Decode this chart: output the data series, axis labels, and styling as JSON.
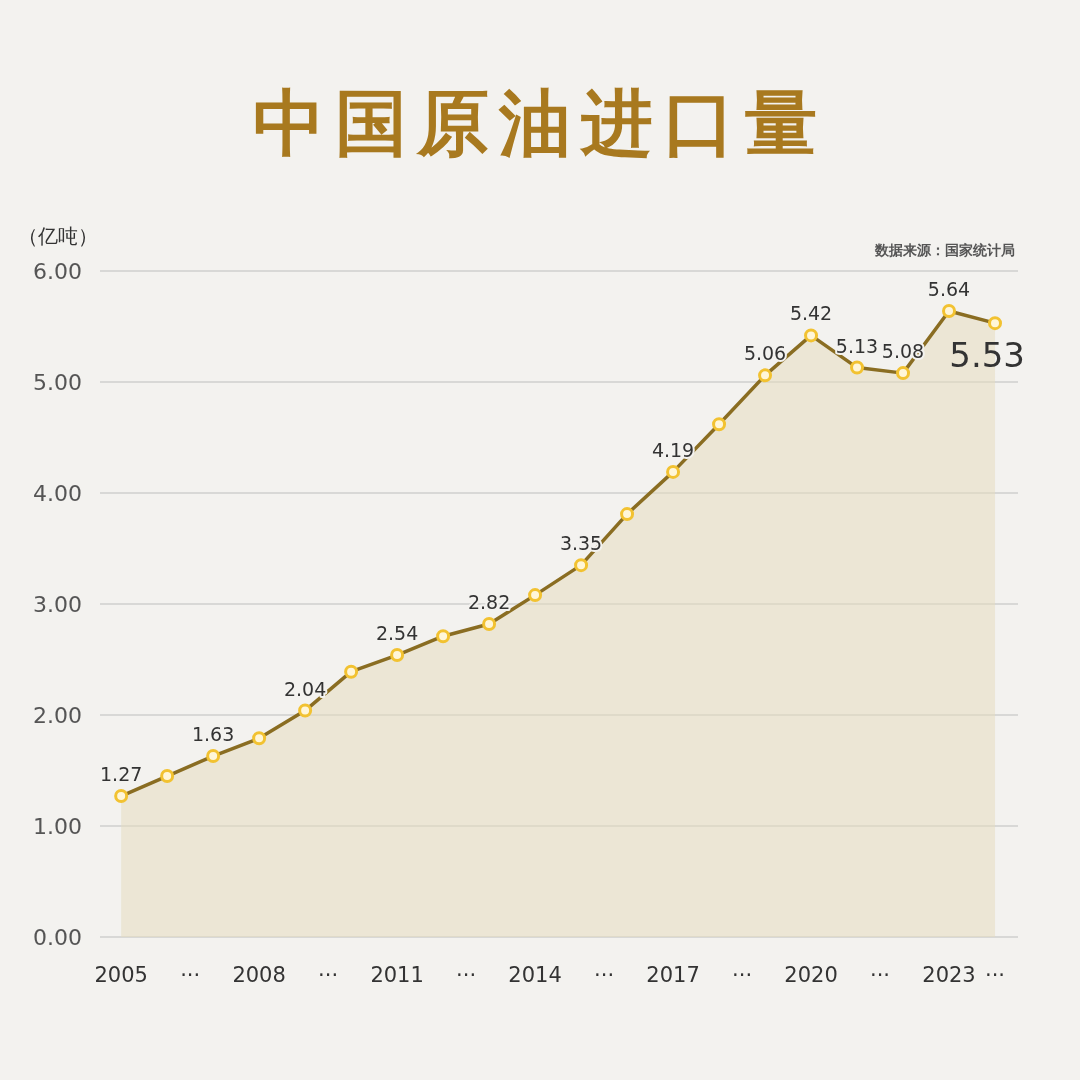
{
  "chart_data": {
    "type": "area",
    "title": "中国原油进口量",
    "ylabel": "（亿吨）",
    "annotations": [
      "数据来源：国家统计局"
    ],
    "x": [
      2005,
      2006,
      2007,
      2008,
      2009,
      2010,
      2011,
      2012,
      2013,
      2014,
      2015,
      2016,
      2017,
      2018,
      2019,
      2020,
      2021,
      2022,
      2023,
      2024
    ],
    "series": [
      {
        "color": "#8a6d22",
        "values": [
          1.27,
          1.45,
          1.63,
          1.79,
          2.04,
          2.39,
          2.54,
          2.71,
          2.82,
          3.08,
          3.35,
          3.81,
          4.19,
          4.62,
          5.06,
          5.42,
          5.13,
          5.08,
          5.64,
          5.53
        ],
        "value_labels": [
          "1.27",
          null,
          "1.63",
          null,
          "2.04",
          null,
          "2.54",
          null,
          "2.82",
          null,
          "3.35",
          null,
          "4.19",
          null,
          "5.06",
          "5.42",
          "5.13",
          "5.08",
          "5.64",
          "5.53"
        ]
      }
    ],
    "xlim": [
      2004.54,
      2024.5
    ],
    "xticks": [
      2005,
      {
        "value": 2006.5,
        "label": "···"
      },
      2008,
      {
        "value": 2009.5,
        "label": "···"
      },
      2011,
      {
        "value": 2012.5,
        "label": "···"
      },
      2014,
      {
        "value": 2015.5,
        "label": "···"
      },
      2017,
      {
        "value": 2018.5,
        "label": "···"
      },
      2020,
      {
        "value": 2021.5,
        "label": "···"
      },
      2023,
      {
        "value": 2024,
        "label": "···"
      }
    ],
    "ylim": [
      0,
      6
    ],
    "yticks": [
      {
        "value": 0,
        "label": "0.00"
      },
      {
        "value": 1,
        "label": "1.00"
      },
      {
        "value": 2,
        "label": "2.00"
      },
      {
        "value": 3,
        "label": "3.00"
      },
      {
        "value": 4,
        "label": "4.00"
      },
      {
        "value": 5,
        "label": "5.00"
      },
      {
        "value": 6,
        "label": "6.00"
      }
    ],
    "grid": "y",
    "marker": "circle",
    "line_style": "solid"
  }
}
